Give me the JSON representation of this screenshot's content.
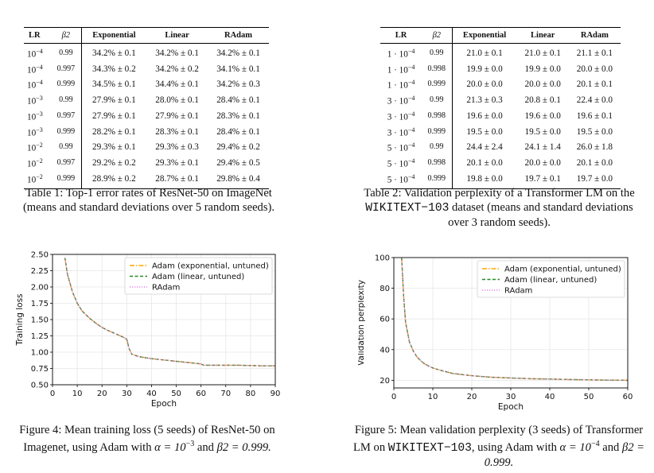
{
  "table1": {
    "headers": [
      "LR",
      "β2",
      "Exponential",
      "Linear",
      "RAdam"
    ],
    "rows": [
      {
        "lr_base": "10",
        "lr_exp": "−4",
        "beta2": "0.99",
        "exponential": "34.2% ± 0.1",
        "linear": "34.2% ± 0.1",
        "radam": "34.2% ± 0.1"
      },
      {
        "lr_base": "10",
        "lr_exp": "−4",
        "beta2": "0.997",
        "exponential": "34.3% ± 0.2",
        "linear": "34.2% ± 0.2",
        "radam": "34.1% ± 0.1"
      },
      {
        "lr_base": "10",
        "lr_exp": "−4",
        "beta2": "0.999",
        "exponential": "34.5% ± 0.1",
        "linear": "34.4% ± 0.1",
        "radam": "34.2% ± 0.3"
      },
      {
        "lr_base": "10",
        "lr_exp": "−3",
        "beta2": "0.99",
        "exponential": "27.9% ± 0.1",
        "linear": "28.0% ± 0.1",
        "radam": "28.4% ± 0.1"
      },
      {
        "lr_base": "10",
        "lr_exp": "−3",
        "beta2": "0.997",
        "exponential": "27.9% ± 0.1",
        "linear": "27.9% ± 0.1",
        "radam": "28.3% ± 0.1"
      },
      {
        "lr_base": "10",
        "lr_exp": "−3",
        "beta2": "0.999",
        "exponential": "28.2% ± 0.1",
        "linear": "28.3% ± 0.1",
        "radam": "28.4% ± 0.1"
      },
      {
        "lr_base": "10",
        "lr_exp": "−2",
        "beta2": "0.99",
        "exponential": "29.3% ± 0.1",
        "linear": "29.3% ± 0.3",
        "radam": "29.4% ± 0.2"
      },
      {
        "lr_base": "10",
        "lr_exp": "−2",
        "beta2": "0.997",
        "exponential": "29.2% ± 0.2",
        "linear": "29.3% ± 0.1",
        "radam": "29.4% ± 0.5"
      },
      {
        "lr_base": "10",
        "lr_exp": "−2",
        "beta2": "0.999",
        "exponential": "28.9% ± 0.2",
        "linear": "28.7% ± 0.1",
        "radam": "29.8% ± 0.4"
      }
    ],
    "caption": "Table 1: Top-1 error rates of ResNet-50 on ImageNet (means and standard deviations over 5 random seeds)."
  },
  "table2": {
    "headers": [
      "LR",
      "β2",
      "Exponential",
      "Linear",
      "RAdam"
    ],
    "rows": [
      {
        "lr_mant": "1 · 10",
        "lr_exp": "−4",
        "beta2": "0.99",
        "exponential": "21.0 ± 0.1",
        "linear": "21.0 ± 0.1",
        "radam": "21.1 ± 0.1"
      },
      {
        "lr_mant": "1 · 10",
        "lr_exp": "−4",
        "beta2": "0.998",
        "exponential": "19.9 ± 0.0",
        "linear": "19.9 ± 0.0",
        "radam": "20.0 ± 0.0"
      },
      {
        "lr_mant": "1 · 10",
        "lr_exp": "−4",
        "beta2": "0.999",
        "exponential": "20.0 ± 0.0",
        "linear": "20.0 ± 0.0",
        "radam": "20.1 ± 0.1"
      },
      {
        "lr_mant": "3 · 10",
        "lr_exp": "−4",
        "beta2": "0.99",
        "exponential": "21.3 ± 0.3",
        "linear": "20.8 ± 0.1",
        "radam": "22.4 ± 0.0"
      },
      {
        "lr_mant": "3 · 10",
        "lr_exp": "−4",
        "beta2": "0.998",
        "exponential": "19.6 ± 0.0",
        "linear": "19.6 ± 0.0",
        "radam": "19.6 ± 0.1"
      },
      {
        "lr_mant": "3 · 10",
        "lr_exp": "−4",
        "beta2": "0.999",
        "exponential": "19.5 ± 0.0",
        "linear": "19.5 ± 0.0",
        "radam": "19.5 ± 0.0"
      },
      {
        "lr_mant": "5 · 10",
        "lr_exp": "−4",
        "beta2": "0.99",
        "exponential": "24.4 ± 2.4",
        "linear": "24.1 ± 1.4",
        "radam": "26.0 ± 1.8"
      },
      {
        "lr_mant": "5 · 10",
        "lr_exp": "−4",
        "beta2": "0.998",
        "exponential": "20.1 ± 0.0",
        "linear": "20.0 ± 0.0",
        "radam": "20.1 ± 0.0"
      },
      {
        "lr_mant": "5 · 10",
        "lr_exp": "−4",
        "beta2": "0.999",
        "exponential": "19.8 ± 0.0",
        "linear": "19.7 ± 0.1",
        "radam": "19.7 ± 0.0"
      }
    ],
    "caption_pre": "Table 2: Validation perplexity of a Transformer LM on the ",
    "caption_dataset": "WIKITEXT−103",
    "caption_post": " dataset (means and standard deviations over 3 random seeds)."
  },
  "figure4": {
    "caption_pre": "Figure 4: Mean training loss (5 seeds) of ResNet-50 on Imagenet, using Adam with ",
    "caption_alpha": "α = 10",
    "caption_alpha_exp": "−3",
    "caption_and": " and ",
    "caption_beta": "β2 = 0.999."
  },
  "figure5": {
    "caption_pre": "Figure 5: Mean validation perplexity (3 seeds) of Transformer LM on ",
    "caption_dataset": "WIKITEXT−103",
    "caption_mid": ", using Adam with ",
    "caption_alpha": "α = 10",
    "caption_alpha_exp": "−4",
    "caption_and": " and ",
    "caption_beta": "β2 = 0.999."
  },
  "chart_data": [
    {
      "type": "line",
      "xlabel": "Epoch",
      "ylabel": "Training loss",
      "xlim": [
        0,
        90
      ],
      "ylim": [
        0.5,
        2.5
      ],
      "xticks": [
        "0",
        "10",
        "20",
        "30",
        "40",
        "50",
        "60",
        "70",
        "80",
        "90"
      ],
      "yticks": [
        "0.50",
        "0.75",
        "1.00",
        "1.25",
        "1.50",
        "1.75",
        "2.00",
        "2.25",
        "2.50"
      ],
      "grid": true,
      "legend_position": "top-right",
      "colors": [
        "#ffa500",
        "#228b22",
        "#ee82ee"
      ],
      "series": [
        {
          "name": "Adam (exponential, untuned)",
          "x": [
            5,
            6,
            8,
            10,
            12,
            15,
            18,
            20,
            22,
            25,
            28,
            30,
            31,
            32,
            35,
            40,
            45,
            50,
            55,
            60,
            61,
            65,
            70,
            75,
            80,
            85,
            90
          ],
          "y": [
            2.45,
            2.2,
            1.93,
            1.75,
            1.63,
            1.52,
            1.43,
            1.38,
            1.34,
            1.29,
            1.24,
            1.2,
            1.05,
            0.97,
            0.93,
            0.9,
            0.88,
            0.86,
            0.84,
            0.82,
            0.8,
            0.8,
            0.8,
            0.8,
            0.795,
            0.79,
            0.79
          ]
        },
        {
          "name": "Adam (linear, untuned)",
          "x": [
            5,
            6,
            8,
            10,
            12,
            15,
            18,
            20,
            22,
            25,
            28,
            30,
            31,
            32,
            35,
            40,
            45,
            50,
            55,
            60,
            61,
            65,
            70,
            75,
            80,
            85,
            90
          ],
          "y": [
            2.45,
            2.2,
            1.93,
            1.75,
            1.63,
            1.52,
            1.43,
            1.38,
            1.34,
            1.29,
            1.24,
            1.2,
            1.05,
            0.97,
            0.93,
            0.9,
            0.88,
            0.86,
            0.84,
            0.82,
            0.8,
            0.8,
            0.8,
            0.8,
            0.795,
            0.79,
            0.79
          ]
        },
        {
          "name": "RAdam",
          "x": [
            5,
            6,
            8,
            10,
            12,
            15,
            18,
            20,
            22,
            25,
            28,
            30,
            31,
            32,
            35,
            40,
            45,
            50,
            55,
            60,
            61,
            65,
            70,
            75,
            80,
            85,
            90
          ],
          "y": [
            2.45,
            2.2,
            1.93,
            1.75,
            1.63,
            1.52,
            1.43,
            1.38,
            1.34,
            1.29,
            1.24,
            1.2,
            1.05,
            0.97,
            0.93,
            0.9,
            0.88,
            0.86,
            0.84,
            0.82,
            0.8,
            0.8,
            0.8,
            0.8,
            0.795,
            0.79,
            0.79
          ]
        }
      ]
    },
    {
      "type": "line",
      "xlabel": "Epoch",
      "ylabel": "Validation perplexity",
      "xlim": [
        0,
        60
      ],
      "ylim": [
        15,
        100
      ],
      "xticks": [
        "0",
        "10",
        "20",
        "30",
        "40",
        "50",
        "60"
      ],
      "yticks": [
        "20",
        "40",
        "60",
        "80",
        "100"
      ],
      "grid": true,
      "legend_position": "top-right",
      "colors": [
        "#ffa500",
        "#228b22",
        "#ee82ee"
      ],
      "series": [
        {
          "name": "Adam (exponential, untuned)",
          "x": [
            2,
            2.5,
            3,
            4,
            5,
            6,
            7,
            8,
            10,
            12,
            15,
            20,
            25,
            30,
            35,
            40,
            45,
            50,
            55,
            60
          ],
          "y": [
            100,
            75,
            58,
            45,
            39,
            35,
            32.5,
            30.5,
            28,
            26.5,
            24.5,
            23,
            22,
            21.5,
            21,
            20.8,
            20.5,
            20.3,
            20.1,
            20
          ]
        },
        {
          "name": "Adam (linear, untuned)",
          "x": [
            2,
            2.5,
            3,
            4,
            5,
            6,
            7,
            8,
            10,
            12,
            15,
            20,
            25,
            30,
            35,
            40,
            45,
            50,
            55,
            60
          ],
          "y": [
            100,
            75,
            58,
            45,
            39,
            35,
            32.5,
            30.5,
            28,
            26.5,
            24.5,
            23,
            22,
            21.5,
            21,
            20.8,
            20.5,
            20.3,
            20.1,
            20
          ]
        },
        {
          "name": "RAdam",
          "x": [
            2,
            2.5,
            3,
            4,
            5,
            6,
            7,
            8,
            10,
            12,
            15,
            20,
            25,
            30,
            35,
            40,
            45,
            50,
            55,
            60
          ],
          "y": [
            100,
            75,
            58,
            45,
            39,
            35,
            32.5,
            30.5,
            28,
            26.5,
            24.5,
            23,
            22,
            21.5,
            21,
            20.8,
            20.5,
            20.3,
            20.1,
            20
          ]
        }
      ]
    }
  ]
}
